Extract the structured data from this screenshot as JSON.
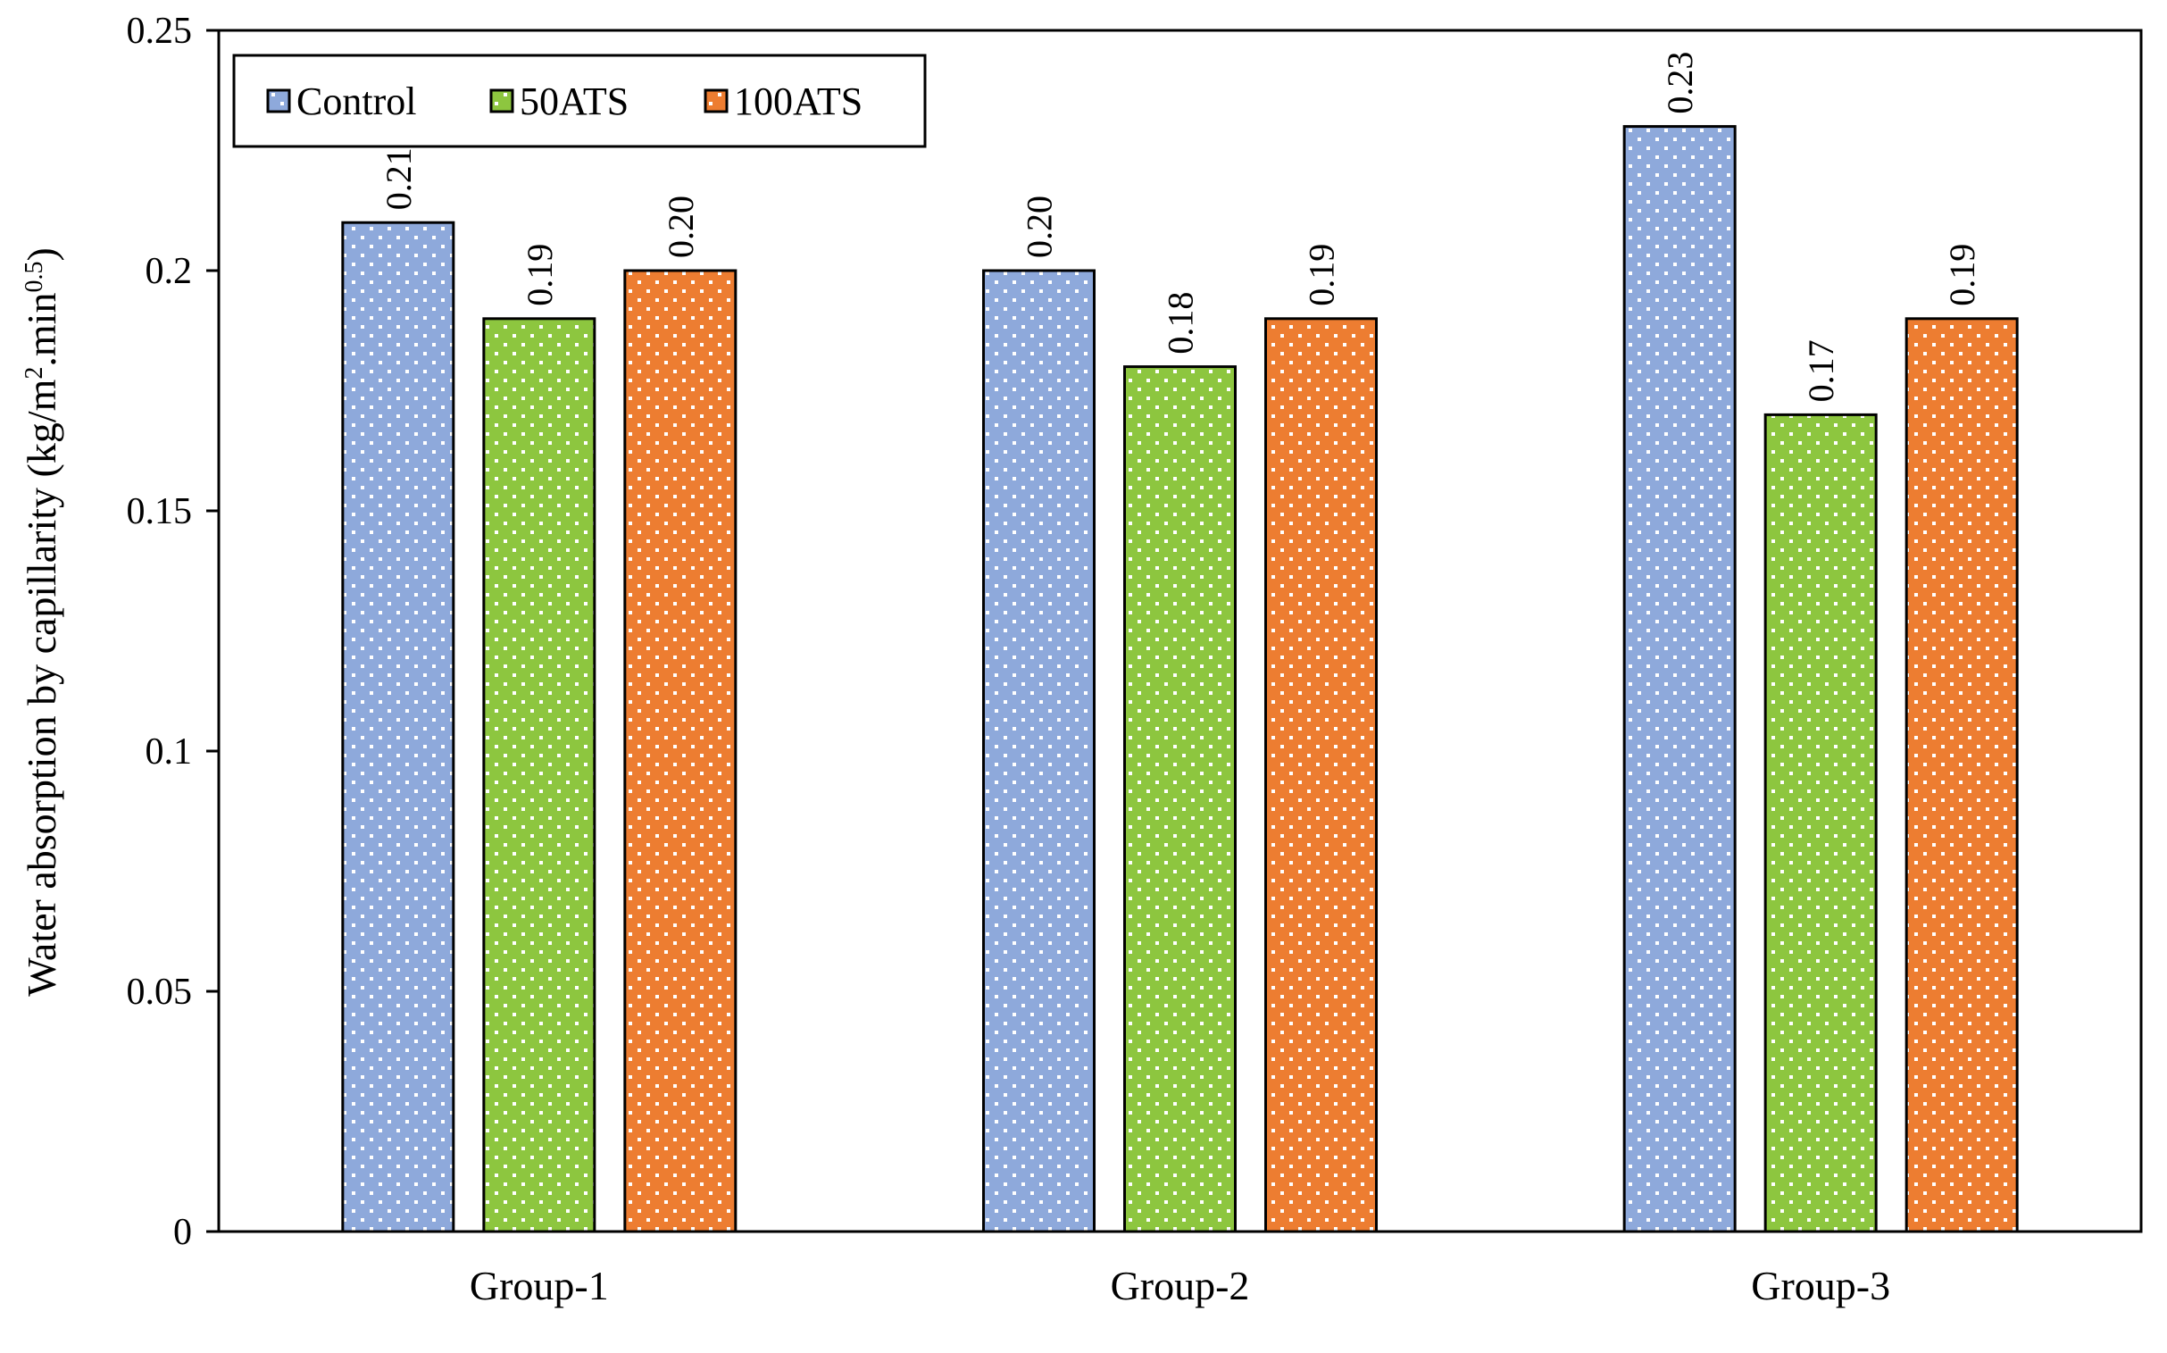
{
  "chart_data": {
    "type": "bar",
    "title": "",
    "xlabel": "",
    "ylabel": "Water absorption by capillarity (kg/m².min^0.5)",
    "ylabel_parts": {
      "prefix": "Water absorption by capillarity (kg/m",
      "sup1": "2",
      "middle": ".min",
      "sup2": "0.5",
      "suffix": ")"
    },
    "ylim": [
      0,
      0.25
    ],
    "yticks": [
      {
        "value": 0,
        "label": "0"
      },
      {
        "value": 0.05,
        "label": "0.05"
      },
      {
        "value": 0.1,
        "label": "0.1"
      },
      {
        "value": 0.15,
        "label": "0.15"
      },
      {
        "value": 0.2,
        "label": "0.2"
      },
      {
        "value": 0.25,
        "label": "0.25"
      }
    ],
    "categories": [
      "Group-1",
      "Group-2",
      "Group-3"
    ],
    "series": [
      {
        "name": "Control",
        "color": "#8EA9DB",
        "values": [
          0.21,
          0.2,
          0.23
        ],
        "labels": [
          "0.21",
          "0.20",
          "0.23"
        ]
      },
      {
        "name": "50ATS",
        "color": "#8DC63F",
        "values": [
          0.19,
          0.18,
          0.17
        ],
        "labels": [
          "0.19",
          "0.18",
          "0.17"
        ]
      },
      {
        "name": "100ATS",
        "color": "#ED7D31",
        "values": [
          0.2,
          0.19,
          0.19
        ],
        "labels": [
          "0.20",
          "0.19",
          "0.19"
        ]
      }
    ],
    "legend_position": "top-left",
    "grid": false,
    "bar_pattern": "white-dots"
  }
}
